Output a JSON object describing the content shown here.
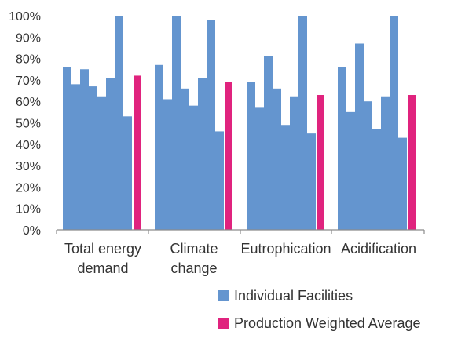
{
  "chart_data": {
    "type": "bar",
    "title": "",
    "xlabel": "",
    "ylabel": "",
    "ylim": [
      0,
      100
    ],
    "yticks": [
      "0%",
      "10%",
      "20%",
      "30%",
      "40%",
      "50%",
      "60%",
      "70%",
      "80%",
      "90%",
      "100%"
    ],
    "grid": false,
    "legend_position": "bottom-right",
    "categories": [
      [
        "Total energy",
        "demand"
      ],
      [
        "Climate",
        "change"
      ],
      [
        "Eutrophication"
      ],
      [
        "Acidification"
      ]
    ],
    "series": [
      {
        "name": "Individual Facilities",
        "color": "#6495cf",
        "values": [
          [
            76,
            68,
            75,
            67,
            62,
            71,
            100,
            53
          ],
          [
            77,
            61,
            100,
            66,
            58,
            71,
            98,
            46
          ],
          [
            69,
            57,
            81,
            66,
            49,
            62,
            100,
            45
          ],
          [
            76,
            55,
            87,
            60,
            47,
            62,
            100,
            43
          ]
        ]
      },
      {
        "name": "Production Weighted Average",
        "color": "#e0237e",
        "values": [
          72,
          69,
          63,
          63
        ]
      }
    ]
  }
}
